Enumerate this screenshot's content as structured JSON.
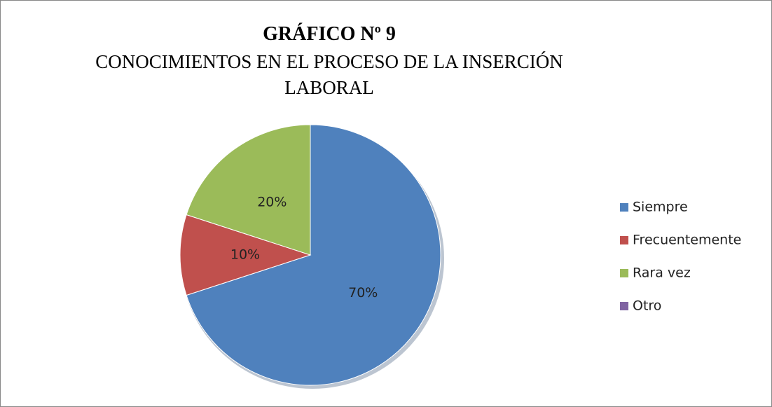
{
  "chart_data": {
    "type": "pie",
    "title": "GRÁFICO Nº 9",
    "subtitle": [
      "CONOCIMIENTOS EN EL PROCESO DE LA INSERCIÓN",
      "LABORAL"
    ],
    "categories": [
      "Siempre",
      "Frecuentemente",
      "Rara vez",
      "Otro"
    ],
    "values": [
      70,
      10,
      20,
      0
    ],
    "value_labels": [
      "70%",
      "10%",
      "20%",
      null
    ],
    "colors": [
      "#4f81bd",
      "#c0504d",
      "#9bbb59",
      "#8064a2"
    ],
    "legend": "right"
  }
}
